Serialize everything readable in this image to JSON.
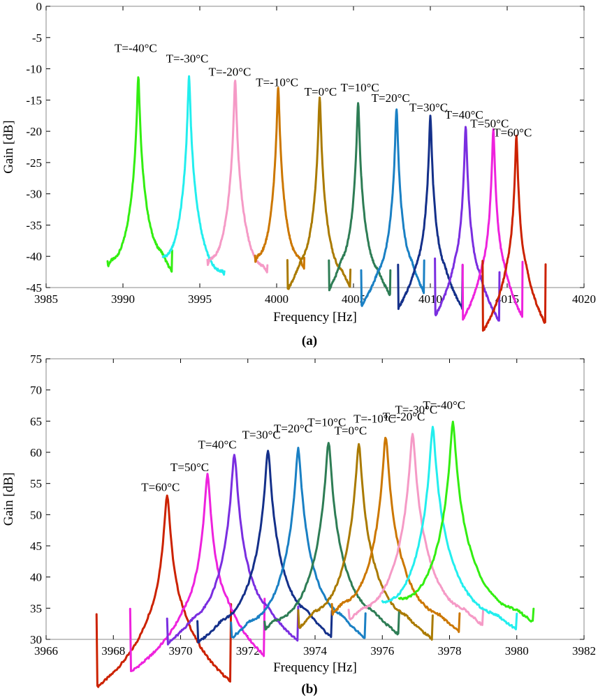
{
  "figure": {
    "title": ""
  },
  "chart_data": [
    {
      "type": "line",
      "panel_label": "(a)",
      "xlabel": "Frequency [Hz]",
      "ylabel": "Gain [dB]",
      "xlim": [
        3985,
        4020
      ],
      "ylim": [
        -45,
        0
      ],
      "xticks": [
        3985,
        3990,
        3995,
        4000,
        4005,
        4010,
        4015,
        4020
      ],
      "yticks": [
        0,
        -5,
        -10,
        -15,
        -20,
        -25,
        -30,
        -35,
        -40,
        -45
      ],
      "grid": false,
      "series": [
        {
          "name": "T=-40°C",
          "color": "#33ee11",
          "f0": 3991.0,
          "peak": -11.2,
          "f_start": 3989.0,
          "f_end": 3993.2,
          "g_start": -40.6,
          "g_end": -39.2
        },
        {
          "name": "T=-30°C",
          "color": "#22eeee",
          "f0": 3994.3,
          "peak": -11.2,
          "f_start": 3992.6,
          "f_end": 3996.6,
          "g_start": -40.0,
          "g_end": -42.4
        },
        {
          "name": "T=-20°C",
          "color": "#f59ac6",
          "f0": 3997.3,
          "peak": -11.8,
          "f_start": 3995.5,
          "f_end": 3999.4,
          "g_start": -40.4,
          "g_end": -41.5
        },
        {
          "name": "T=-10°C",
          "color": "#cc7700",
          "f0": 4000.1,
          "peak": -13.0,
          "f_start": 3998.6,
          "f_end": 4001.8,
          "g_start": -39.8,
          "g_end": -40.2
        },
        {
          "name": "T=0°C",
          "color": "#aa7a00",
          "f0": 4002.8,
          "peak": -14.5,
          "f_start": 4000.7,
          "f_end": 4004.8,
          "g_start": -40.5,
          "g_end": -42.3
        },
        {
          "name": "T=10°C",
          "color": "#2e7d55",
          "f0": 4005.3,
          "peak": -15.4,
          "f_start": 4003.4,
          "f_end": 4007.4,
          "g_start": -40.5,
          "g_end": -42.2
        },
        {
          "name": "T=20°C",
          "color": "#1a80c4",
          "f0": 4007.8,
          "peak": -16.3,
          "f_start": 4005.5,
          "f_end": 4009.6,
          "g_start": -42.4,
          "g_end": -40.6
        },
        {
          "name": "T=30°C",
          "color": "#14308a",
          "f0": 4010.0,
          "peak": -17.5,
          "f_start": 4007.9,
          "f_end": 4012.1,
          "g_start": -41.2,
          "g_end": -41.6
        },
        {
          "name": "T=40°C",
          "color": "#7a2ee0",
          "f0": 4012.3,
          "peak": -19.1,
          "f_start": 4010.3,
          "f_end": 4014.5,
          "g_start": -40.3,
          "g_end": -42.5
        },
        {
          "name": "T=50°C",
          "color": "#ee22dd",
          "f0": 4014.1,
          "peak": -19.7,
          "f_start": 4012.1,
          "f_end": 4016.0,
          "g_start": -41.5,
          "g_end": -41.0
        },
        {
          "name": "T=60°C",
          "color": "#cc2200",
          "f0": 4015.6,
          "peak": -20.8,
          "f_start": 4013.4,
          "f_end": 4017.5,
          "g_start": -40.8,
          "g_end": -41.4
        }
      ]
    },
    {
      "type": "line",
      "panel_label": "(b)",
      "xlabel": "Frequency [Hz]",
      "ylabel": "Gain [dB]",
      "xlim": [
        3966,
        3982
      ],
      "ylim": [
        30,
        75
      ],
      "xticks": [
        3966,
        3968,
        3970,
        3972,
        3974,
        3976,
        3978,
        3980,
        3982
      ],
      "yticks": [
        75,
        70,
        65,
        60,
        55,
        50,
        45,
        40,
        35,
        30
      ],
      "grid": false,
      "series": [
        {
          "name": "T=60°C",
          "color": "#cc2200",
          "f0": 3969.6,
          "peak": 53.2,
          "f_start": 3967.5,
          "f_end": 3971.5,
          "g_start": 34.2,
          "g_end": 35.5
        },
        {
          "name": "T=50°C",
          "color": "#ee22dd",
          "f0": 3970.8,
          "peak": 56.4,
          "f_start": 3968.5,
          "f_end": 3972.5,
          "g_start": 35.0,
          "g_end": 36.5
        },
        {
          "name": "T=40°C",
          "color": "#7a2ee0",
          "f0": 3971.6,
          "peak": 59.7,
          "f_start": 3969.6,
          "f_end": 3973.5,
          "g_start": 33.5,
          "g_end": 35.2
        },
        {
          "name": "T=30°C",
          "color": "#14308a",
          "f0": 3972.6,
          "peak": 60.3,
          "f_start": 3970.5,
          "f_end": 3974.5,
          "g_start": 33.0,
          "g_end": 34.6
        },
        {
          "name": "T=20°C",
          "color": "#1a80c4",
          "f0": 3973.5,
          "peak": 60.6,
          "f_start": 3971.5,
          "f_end": 3975.5,
          "g_start": 32.8,
          "g_end": 34.0
        },
        {
          "name": "T=10°C",
          "color": "#2e7d55",
          "f0": 3974.4,
          "peak": 61.6,
          "f_start": 3972.5,
          "f_end": 3976.5,
          "g_start": 33.0,
          "g_end": 34.5
        },
        {
          "name": "T=0°C",
          "color": "#aa7a00",
          "f0": 3975.3,
          "peak": 61.3,
          "f_start": 3973.5,
          "f_end": 3977.5,
          "g_start": 34.5,
          "g_end": 33.9
        },
        {
          "name": "T=-10°C",
          "color": "#cc7700",
          "f0": 3976.1,
          "peak": 62.5,
          "f_start": 3974.5,
          "f_end": 3978.3,
          "g_start": 35.8,
          "g_end": 34.0
        },
        {
          "name": "T=-20°C",
          "color": "#f59ac6",
          "f0": 3976.9,
          "peak": 63.1,
          "f_start": 3975.0,
          "f_end": 3979.0,
          "g_start": 34.8,
          "g_end": 34.8
        },
        {
          "name": "T=-30°C",
          "color": "#22eeee",
          "f0": 3977.5,
          "peak": 64.0,
          "f_start": 3976.0,
          "f_end": 3980.0,
          "g_start": 36.0,
          "g_end": 34.0
        },
        {
          "name": "T=-40°C",
          "color": "#33ee11",
          "f0": 3978.1,
          "peak": 64.8,
          "f_start": 3976.5,
          "f_end": 3980.5,
          "g_start": 36.5,
          "g_end": 34.8
        }
      ]
    }
  ]
}
